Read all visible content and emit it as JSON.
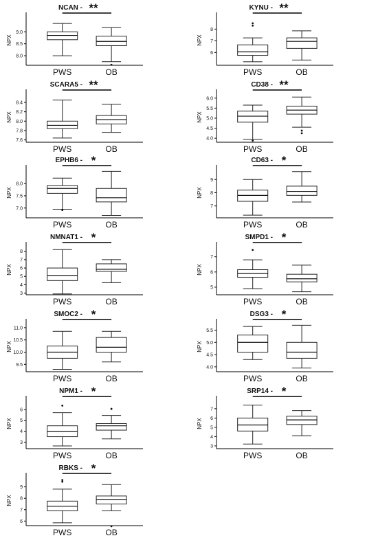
{
  "chart_data": [
    {
      "type": "box",
      "title": "NCAN -",
      "significance": "**",
      "ylabel": "NPX",
      "categories": [
        "PWS",
        "OB"
      ],
      "yticks": [
        8.0,
        8.5,
        9.0
      ],
      "ylim": [
        7.6,
        9.7
      ],
      "boxes": [
        {
          "min": 8.0,
          "q1": 8.67,
          "median": 8.85,
          "q3": 9.0,
          "max": 9.35,
          "outliers": []
        },
        {
          "min": 7.75,
          "q1": 8.42,
          "median": 8.6,
          "q3": 8.82,
          "max": 9.18,
          "outliers": [
            7.62
          ]
        }
      ]
    },
    {
      "type": "box",
      "title": "KYNU -",
      "significance": "**",
      "ylabel": "NPX",
      "categories": [
        "PWS",
        "OB"
      ],
      "yticks": [
        6,
        7,
        8
      ],
      "ylim": [
        4.9,
        9.2
      ],
      "boxes": [
        {
          "min": 5.2,
          "q1": 5.75,
          "median": 6.05,
          "q3": 6.65,
          "max": 7.25,
          "outliers": [
            8.3,
            8.5
          ]
        },
        {
          "min": 5.35,
          "q1": 6.35,
          "median": 6.95,
          "q3": 7.25,
          "max": 7.85,
          "outliers": []
        }
      ]
    },
    {
      "type": "box",
      "title": "SCARA5 -",
      "significance": "**",
      "ylabel": "NPX",
      "categories": [
        "PWS",
        "OB"
      ],
      "yticks": [
        7.6,
        7.8,
        8.0,
        8.2,
        8.4
      ],
      "ylim": [
        7.55,
        8.62
      ],
      "boxes": [
        {
          "min": 7.64,
          "q1": 7.84,
          "median": 7.91,
          "q3": 8.0,
          "max": 8.45,
          "outliers": []
        },
        {
          "min": 7.76,
          "q1": 7.94,
          "median": 8.03,
          "q3": 8.12,
          "max": 8.36,
          "outliers": []
        }
      ]
    },
    {
      "type": "box",
      "title": "CD38 -",
      "significance": "**",
      "ylabel": "NPX",
      "categories": [
        "PWS",
        "OB"
      ],
      "yticks": [
        4.0,
        4.5,
        5.0,
        5.5,
        6.0
      ],
      "ylim": [
        3.8,
        6.3
      ],
      "boxes": [
        {
          "min": 3.95,
          "q1": 4.8,
          "median": 5.1,
          "q3": 5.35,
          "max": 5.65,
          "outliers": [
            3.88
          ]
        },
        {
          "min": 4.55,
          "q1": 5.2,
          "median": 5.4,
          "q3": 5.6,
          "max": 6.05,
          "outliers": [
            4.25,
            4.38
          ]
        }
      ]
    },
    {
      "type": "box",
      "title": "EPHB6 -",
      "significance": "*",
      "ylabel": "NPX",
      "categories": [
        "PWS",
        "OB"
      ],
      "yticks": [
        7.0,
        7.5,
        8.0
      ],
      "ylim": [
        6.6,
        8.65
      ],
      "boxes": [
        {
          "min": 6.95,
          "q1": 7.6,
          "median": 7.8,
          "q3": 7.92,
          "max": 8.22,
          "outliers": [
            6.92
          ]
        },
        {
          "min": 6.7,
          "q1": 7.25,
          "median": 7.42,
          "q3": 7.8,
          "max": 8.5,
          "outliers": []
        }
      ]
    },
    {
      "type": "box",
      "title": "CD63 -",
      "significance": "*",
      "ylabel": "NPX",
      "categories": [
        "PWS",
        "OB"
      ],
      "yticks": [
        7,
        8,
        9
      ],
      "ylim": [
        6.1,
        9.9
      ],
      "boxes": [
        {
          "min": 6.3,
          "q1": 7.35,
          "median": 7.8,
          "q3": 8.2,
          "max": 9.0,
          "outliers": []
        },
        {
          "min": 7.3,
          "q1": 7.8,
          "median": 8.1,
          "q3": 8.5,
          "max": 9.6,
          "outliers": []
        }
      ]
    },
    {
      "type": "box",
      "title": "NMNAT1 -",
      "significance": "*",
      "ylabel": "NPX",
      "categories": [
        "PWS",
        "OB"
      ],
      "yticks": [
        3,
        4,
        5,
        6,
        7,
        8
      ],
      "ylim": [
        2.8,
        8.8
      ],
      "boxes": [
        {
          "min": 2.9,
          "q1": 4.5,
          "median": 5.1,
          "q3": 6.0,
          "max": 8.2,
          "outliers": []
        },
        {
          "min": 4.25,
          "q1": 5.6,
          "median": 5.85,
          "q3": 6.5,
          "max": 7.0,
          "outliers": []
        }
      ]
    },
    {
      "type": "box",
      "title": "SMPD1 -",
      "significance": "*",
      "ylabel": "NPX",
      "categories": [
        "PWS",
        "OB"
      ],
      "yticks": [
        5,
        6,
        7
      ],
      "ylim": [
        4.5,
        7.8
      ],
      "boxes": [
        {
          "min": 4.9,
          "q1": 5.65,
          "median": 5.9,
          "q3": 6.15,
          "max": 6.8,
          "outliers": [
            7.45
          ]
        },
        {
          "min": 4.7,
          "q1": 5.35,
          "median": 5.55,
          "q3": 5.85,
          "max": 6.45,
          "outliers": []
        }
      ]
    },
    {
      "type": "box",
      "title": "SMOC2 -",
      "significance": "*",
      "ylabel": "NPX",
      "categories": [
        "PWS",
        "OB"
      ],
      "yticks": [
        9.5,
        10.0,
        10.5,
        11.0
      ],
      "ylim": [
        9.2,
        11.25
      ],
      "boxes": [
        {
          "min": 9.3,
          "q1": 9.75,
          "median": 10.0,
          "q3": 10.25,
          "max": 10.85,
          "outliers": []
        },
        {
          "min": 9.6,
          "q1": 10.0,
          "median": 10.2,
          "q3": 10.6,
          "max": 10.85,
          "outliers": []
        }
      ]
    },
    {
      "type": "box",
      "title": "DSG3 -",
      "significance": "*",
      "ylabel": "NPX",
      "categories": [
        "PWS",
        "OB"
      ],
      "yticks": [
        4.0,
        4.5,
        5.0,
        5.5
      ],
      "ylim": [
        3.8,
        5.85
      ],
      "boxes": [
        {
          "min": 4.3,
          "q1": 4.6,
          "median": 5.0,
          "q3": 5.3,
          "max": 5.65,
          "outliers": []
        },
        {
          "min": 3.95,
          "q1": 4.35,
          "median": 4.6,
          "q3": 5.0,
          "max": 5.7,
          "outliers": []
        }
      ]
    },
    {
      "type": "box",
      "title": "NPM1 -",
      "significance": "*",
      "ylabel": "NPX",
      "categories": [
        "PWS",
        "OB"
      ],
      "yticks": [
        3,
        4,
        5,
        6
      ],
      "ylim": [
        2.4,
        7.0
      ],
      "boxes": [
        {
          "min": 2.65,
          "q1": 3.5,
          "median": 4.0,
          "q3": 4.5,
          "max": 5.7,
          "outliers": [
            6.35
          ]
        },
        {
          "min": 3.3,
          "q1": 4.1,
          "median": 4.5,
          "q3": 4.7,
          "max": 5.45,
          "outliers": [
            6.05
          ]
        }
      ]
    },
    {
      "type": "box",
      "title": "SRP14 -",
      "significance": "*",
      "ylabel": "NPX",
      "categories": [
        "PWS",
        "OB"
      ],
      "yticks": [
        3,
        4,
        5,
        6,
        7
      ],
      "ylim": [
        2.7,
        8.1
      ],
      "boxes": [
        {
          "min": 3.2,
          "q1": 4.6,
          "median": 5.25,
          "q3": 6.0,
          "max": 7.4,
          "outliers": []
        },
        {
          "min": 4.1,
          "q1": 5.3,
          "median": 5.8,
          "q3": 6.2,
          "max": 6.8,
          "outliers": []
        }
      ]
    },
    {
      "type": "box",
      "title": "RBKS -",
      "significance": "*",
      "ylabel": "NPX",
      "categories": [
        "PWS",
        "OB"
      ],
      "yticks": [
        6,
        7,
        8,
        9
      ],
      "ylim": [
        5.6,
        10.0
      ],
      "boxes": [
        {
          "min": 5.85,
          "q1": 6.9,
          "median": 7.3,
          "q3": 7.75,
          "max": 8.8,
          "outliers": [
            9.45,
            9.6
          ]
        },
        {
          "min": 6.9,
          "q1": 7.5,
          "median": 7.9,
          "q3": 8.2,
          "max": 9.2,
          "outliers": [
            5.55
          ]
        }
      ]
    }
  ]
}
